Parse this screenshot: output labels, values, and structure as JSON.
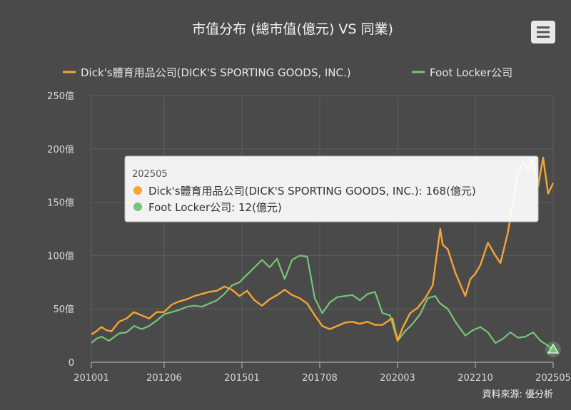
{
  "chart_data": {
    "type": "line",
    "title": "市值分布 (總市值(億元) VS 同業)",
    "ytick_labels": [
      "0",
      "50億",
      "100億",
      "150億",
      "200億",
      "250億"
    ],
    "ylim": [
      0,
      250
    ],
    "xtick_labels": [
      "201001",
      "201206",
      "201501",
      "201708",
      "202003",
      "202210",
      "202505"
    ],
    "x_start": "2010-01",
    "x_end": "2025-05",
    "grid": true,
    "legend_position": "top",
    "source": "資料來源: 優分析",
    "colors": {
      "dicks": "#f5a534",
      "footlocker": "#76c578",
      "background": "#4a4a4a",
      "grid": "#5e5e5e"
    },
    "series": [
      {
        "name": "Dick's體育用品公司(DICK'S SPORTING GOODS, INC.)",
        "key": "dicks",
        "points": [
          [
            "2010-01",
            26
          ],
          [
            "2010-03",
            29
          ],
          [
            "2010-05",
            33
          ],
          [
            "2010-07",
            30
          ],
          [
            "2010-09",
            29
          ],
          [
            "2010-12",
            38
          ],
          [
            "2011-03",
            41
          ],
          [
            "2011-06",
            47
          ],
          [
            "2011-09",
            44
          ],
          [
            "2011-12",
            41
          ],
          [
            "2012-03",
            47
          ],
          [
            "2012-06",
            47
          ],
          [
            "2012-09",
            54
          ],
          [
            "2012-12",
            57
          ],
          [
            "2013-03",
            59
          ],
          [
            "2013-06",
            62
          ],
          [
            "2013-09",
            64
          ],
          [
            "2013-12",
            66
          ],
          [
            "2014-03",
            67
          ],
          [
            "2014-06",
            71
          ],
          [
            "2014-09",
            68
          ],
          [
            "2014-12",
            62
          ],
          [
            "2015-03",
            67
          ],
          [
            "2015-06",
            58
          ],
          [
            "2015-09",
            53
          ],
          [
            "2015-12",
            59
          ],
          [
            "2016-03",
            63
          ],
          [
            "2016-06",
            68
          ],
          [
            "2016-09",
            63
          ],
          [
            "2016-12",
            60
          ],
          [
            "2017-03",
            55
          ],
          [
            "2017-06",
            44
          ],
          [
            "2017-09",
            34
          ],
          [
            "2017-12",
            31
          ],
          [
            "2018-03",
            34
          ],
          [
            "2018-06",
            37
          ],
          [
            "2018-09",
            38
          ],
          [
            "2018-12",
            36
          ],
          [
            "2019-03",
            38
          ],
          [
            "2019-06",
            35
          ],
          [
            "2019-09",
            35
          ],
          [
            "2019-12",
            40
          ],
          [
            "2020-01",
            41
          ],
          [
            "2020-03",
            20
          ],
          [
            "2020-05",
            32
          ],
          [
            "2020-08",
            46
          ],
          [
            "2020-11",
            51
          ],
          [
            "2021-02",
            60
          ],
          [
            "2021-05",
            72
          ],
          [
            "2021-08",
            125
          ],
          [
            "2021-09",
            110
          ],
          [
            "2021-11",
            106
          ],
          [
            "2022-02",
            84
          ],
          [
            "2022-06",
            62
          ],
          [
            "2022-08",
            78
          ],
          [
            "2022-10",
            83
          ],
          [
            "2022-12",
            91
          ],
          [
            "2023-03",
            112
          ],
          [
            "2023-06",
            100
          ],
          [
            "2023-08",
            93
          ],
          [
            "2023-11",
            122
          ],
          [
            "2024-01",
            150
          ],
          [
            "2024-03",
            178
          ],
          [
            "2024-05",
            188
          ],
          [
            "2024-07",
            180
          ],
          [
            "2024-09",
            190
          ],
          [
            "2024-11",
            165
          ],
          [
            "2025-01",
            192
          ],
          [
            "2025-03",
            158
          ],
          [
            "2025-05",
            168
          ]
        ]
      },
      {
        "name": "Foot Locker公司",
        "key": "footlocker",
        "points": [
          [
            "2010-01",
            18
          ],
          [
            "2010-03",
            22
          ],
          [
            "2010-05",
            24
          ],
          [
            "2010-08",
            20
          ],
          [
            "2010-12",
            27
          ],
          [
            "2011-03",
            28
          ],
          [
            "2011-06",
            34
          ],
          [
            "2011-09",
            31
          ],
          [
            "2011-12",
            34
          ],
          [
            "2012-03",
            39
          ],
          [
            "2012-06",
            45
          ],
          [
            "2012-09",
            47
          ],
          [
            "2012-12",
            49
          ],
          [
            "2013-03",
            52
          ],
          [
            "2013-06",
            53
          ],
          [
            "2013-09",
            52
          ],
          [
            "2013-12",
            55
          ],
          [
            "2014-03",
            58
          ],
          [
            "2014-06",
            64
          ],
          [
            "2014-09",
            72
          ],
          [
            "2014-12",
            75
          ],
          [
            "2015-03",
            82
          ],
          [
            "2015-06",
            89
          ],
          [
            "2015-09",
            96
          ],
          [
            "2015-12",
            89
          ],
          [
            "2016-03",
            97
          ],
          [
            "2016-06",
            78
          ],
          [
            "2016-09",
            96
          ],
          [
            "2016-12",
            100
          ],
          [
            "2017-03",
            99
          ],
          [
            "2017-06",
            60
          ],
          [
            "2017-09",
            46
          ],
          [
            "2017-12",
            56
          ],
          [
            "2018-03",
            61
          ],
          [
            "2018-06",
            62
          ],
          [
            "2018-09",
            63
          ],
          [
            "2018-12",
            58
          ],
          [
            "2019-03",
            64
          ],
          [
            "2019-06",
            66
          ],
          [
            "2019-09",
            46
          ],
          [
            "2019-12",
            44
          ],
          [
            "2020-03",
            20
          ],
          [
            "2020-06",
            29
          ],
          [
            "2020-09",
            36
          ],
          [
            "2020-12",
            45
          ],
          [
            "2021-03",
            60
          ],
          [
            "2021-06",
            62
          ],
          [
            "2021-08",
            55
          ],
          [
            "2021-11",
            50
          ],
          [
            "2022-02",
            38
          ],
          [
            "2022-06",
            25
          ],
          [
            "2022-09",
            30
          ],
          [
            "2022-12",
            33
          ],
          [
            "2023-03",
            28
          ],
          [
            "2023-06",
            18
          ],
          [
            "2023-09",
            22
          ],
          [
            "2023-12",
            28
          ],
          [
            "2024-03",
            23
          ],
          [
            "2024-06",
            24
          ],
          [
            "2024-09",
            28
          ],
          [
            "2024-12",
            20
          ],
          [
            "2025-02",
            17
          ],
          [
            "2025-05",
            12
          ]
        ]
      }
    ]
  },
  "tooltip": {
    "header": "202505",
    "lines": [
      "Dick's體育用品公司(DICK'S SPORTING GOODS, INC.): 168(億元)",
      "Foot Locker公司: 12(億元)"
    ]
  },
  "menu_icon": "hamburger-menu-icon"
}
